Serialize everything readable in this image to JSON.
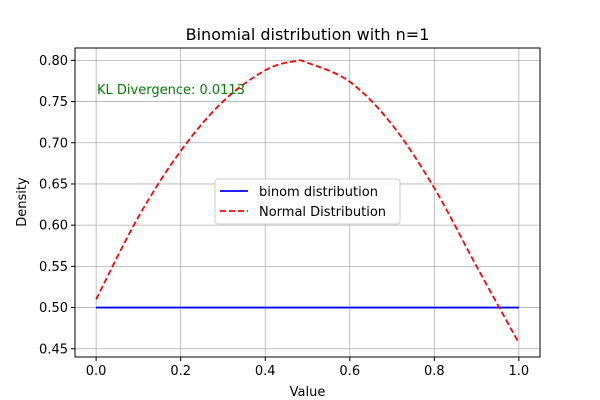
{
  "chart_data": {
    "type": "line",
    "title": "Binomial distribution with n=1",
    "xlabel": "Value",
    "ylabel": "Density",
    "xlim": [
      -0.05,
      1.05
    ],
    "ylim": [
      0.44,
      0.815
    ],
    "xticks": [
      0.0,
      0.2,
      0.4,
      0.6,
      0.8,
      1.0
    ],
    "xtick_labels": [
      "0.0",
      "0.2",
      "0.4",
      "0.6",
      "0.8",
      "1.0"
    ],
    "yticks": [
      0.45,
      0.5,
      0.55,
      0.6,
      0.65,
      0.7,
      0.75,
      0.8
    ],
    "ytick_labels": [
      "0.45",
      "0.50",
      "0.55",
      "0.60",
      "0.65",
      "0.70",
      "0.75",
      "0.80"
    ],
    "grid": true,
    "legend_position": "center",
    "annotation": "KL Divergence: 0.0113",
    "series": [
      {
        "name": "binom distribution",
        "color": "#0000ff",
        "style": "solid",
        "x": [
          0.0,
          1.0
        ],
        "y": [
          0.5,
          0.5
        ]
      },
      {
        "name": "Normal Distribution",
        "color": "#ff0000",
        "style": "dashed",
        "x": [
          0.0,
          0.1,
          0.2,
          0.3,
          0.4,
          0.47,
          0.5,
          0.6,
          0.7,
          0.8,
          0.9,
          1.0
        ],
        "y": [
          0.51,
          0.61,
          0.69,
          0.75,
          0.788,
          0.799,
          0.797,
          0.774,
          0.722,
          0.645,
          0.55,
          0.457
        ]
      }
    ]
  }
}
